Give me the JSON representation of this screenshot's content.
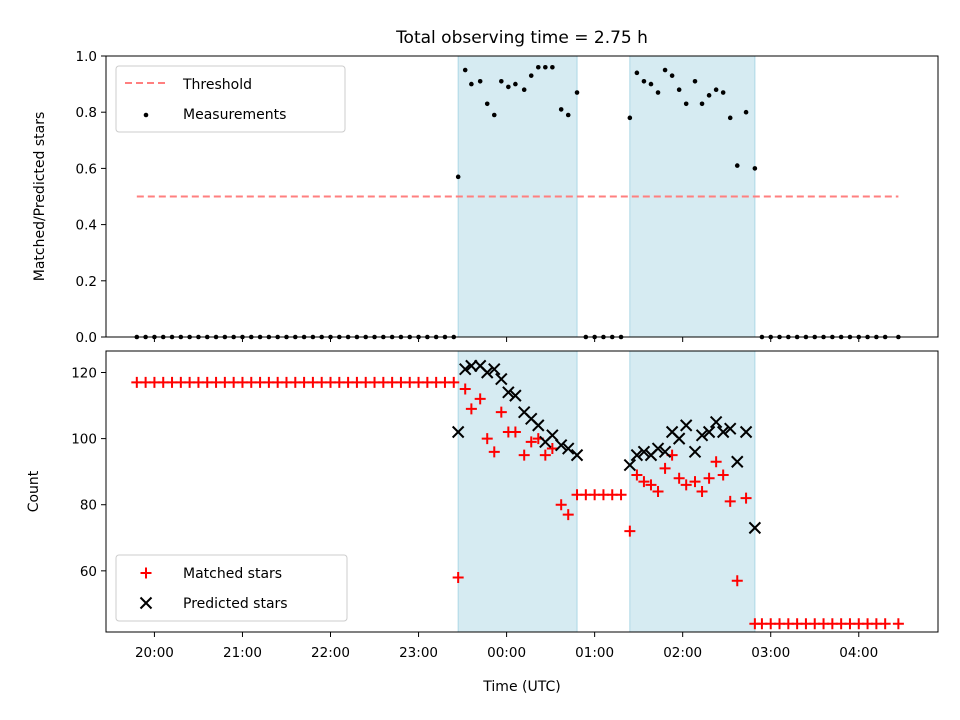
{
  "title": "Total observing time = 2.75 h",
  "colors": {
    "threshold": "#ff7f7f",
    "measurement": "#000000",
    "matched": "#ff0000",
    "predicted": "#000000",
    "shade": "#add8e6"
  },
  "chart_data": [
    {
      "type": "scatter",
      "panel": "top",
      "ylabel": "Matched/Predicted stars",
      "xlim": [
        -4.55,
        4.9
      ],
      "ylim": [
        0,
        1.0
      ],
      "yticks": [
        0.0,
        0.2,
        0.4,
        0.6,
        0.8,
        1.0
      ],
      "ytick_labels": [
        "0.0",
        "0.2",
        "0.4",
        "0.6",
        "0.8",
        "1.0"
      ],
      "legend": {
        "location": "upper-left",
        "entries": [
          "Threshold",
          "Measurements"
        ]
      },
      "threshold": {
        "name": "Threshold",
        "y": 0.5,
        "x_range": [
          -4.2,
          4.45
        ]
      },
      "shaded_intervals": [
        [
          -0.55,
          0.8
        ],
        [
          1.4,
          2.82
        ]
      ],
      "series": [
        {
          "name": "Measurements",
          "x": [
            -4.2,
            -4.1,
            -4.0,
            -3.9,
            -3.8,
            -3.7,
            -3.6,
            -3.5,
            -3.4,
            -3.3,
            -3.2,
            -3.1,
            -3.0,
            -2.9,
            -2.8,
            -2.7,
            -2.6,
            -2.5,
            -2.4,
            -2.3,
            -2.2,
            -2.1,
            -2.0,
            -1.9,
            -1.8,
            -1.7,
            -1.6,
            -1.5,
            -1.4,
            -1.3,
            -1.2,
            -1.1,
            -1.0,
            -0.9,
            -0.8,
            -0.7,
            -0.6,
            -0.55,
            -0.47,
            -0.4,
            -0.3,
            -0.22,
            -0.14,
            -0.06,
            0.02,
            0.1,
            0.2,
            0.28,
            0.36,
            0.44,
            0.52,
            0.62,
            0.7,
            0.8,
            0.9,
            1.0,
            1.1,
            1.2,
            1.3,
            1.4,
            1.48,
            1.56,
            1.64,
            1.72,
            1.8,
            1.88,
            1.96,
            2.04,
            2.14,
            2.22,
            2.3,
            2.38,
            2.46,
            2.54,
            2.62,
            2.72,
            2.82,
            2.9,
            3.0,
            3.1,
            3.2,
            3.3,
            3.4,
            3.5,
            3.6,
            3.7,
            3.8,
            3.9,
            4.0,
            4.1,
            4.2,
            4.3,
            4.45
          ],
          "y": [
            0,
            0,
            0,
            0,
            0,
            0,
            0,
            0,
            0,
            0,
            0,
            0,
            0,
            0,
            0,
            0,
            0,
            0,
            0,
            0,
            0,
            0,
            0,
            0,
            0,
            0,
            0,
            0,
            0,
            0,
            0,
            0,
            0,
            0,
            0,
            0,
            0,
            0.57,
            0.95,
            0.9,
            0.91,
            0.83,
            0.79,
            0.91,
            0.89,
            0.9,
            0.88,
            0.93,
            0.96,
            0.96,
            0.96,
            0.81,
            0.79,
            0.87,
            0,
            0,
            0,
            0,
            0,
            0.78,
            0.94,
            0.91,
            0.9,
            0.87,
            0.95,
            0.93,
            0.88,
            0.83,
            0.91,
            0.83,
            0.86,
            0.88,
            0.87,
            0.78,
            0.61,
            0.8,
            0.6,
            0,
            0,
            0,
            0,
            0,
            0,
            0,
            0,
            0,
            0,
            0,
            0,
            0,
            0,
            0,
            0
          ]
        }
      ]
    },
    {
      "type": "scatter",
      "panel": "bottom",
      "xlabel": "Time (UTC)",
      "ylabel": "Count",
      "xlim": [
        -4.55,
        4.9
      ],
      "ylim": [
        41.5,
        126.5
      ],
      "xticks": [
        -4,
        -3,
        -2,
        -1,
        0,
        1,
        2,
        3,
        4
      ],
      "xtick_labels": [
        "20:00",
        "21:00",
        "22:00",
        "23:00",
        "00:00",
        "01:00",
        "02:00",
        "03:00",
        "04:00"
      ],
      "yticks": [
        60,
        80,
        100,
        120
      ],
      "ytick_labels": [
        "60",
        "80",
        "100",
        "120"
      ],
      "legend": {
        "location": "lower-left",
        "entries": [
          "Matched stars",
          "Predicted stars"
        ]
      },
      "shaded_intervals": [
        [
          -0.55,
          0.8
        ],
        [
          1.4,
          2.82
        ]
      ],
      "series": [
        {
          "name": "Matched stars",
          "marker": "plus",
          "x": [
            -4.2,
            -4.1,
            -4.0,
            -3.9,
            -3.8,
            -3.7,
            -3.6,
            -3.5,
            -3.4,
            -3.3,
            -3.2,
            -3.1,
            -3.0,
            -2.9,
            -2.8,
            -2.7,
            -2.6,
            -2.5,
            -2.4,
            -2.3,
            -2.2,
            -2.1,
            -2.0,
            -1.9,
            -1.8,
            -1.7,
            -1.6,
            -1.5,
            -1.4,
            -1.3,
            -1.2,
            -1.1,
            -1.0,
            -0.9,
            -0.8,
            -0.7,
            -0.6,
            -0.55,
            -0.47,
            -0.4,
            -0.3,
            -0.22,
            -0.14,
            -0.06,
            0.02,
            0.1,
            0.2,
            0.28,
            0.36,
            0.44,
            0.52,
            0.62,
            0.7,
            0.8,
            0.9,
            1.0,
            1.1,
            1.2,
            1.3,
            1.4,
            1.48,
            1.56,
            1.64,
            1.72,
            1.8,
            1.88,
            1.96,
            2.04,
            2.14,
            2.22,
            2.3,
            2.38,
            2.46,
            2.54,
            2.62,
            2.72,
            2.82,
            2.9,
            3.0,
            3.1,
            3.2,
            3.3,
            3.4,
            3.5,
            3.6,
            3.7,
            3.8,
            3.9,
            4.0,
            4.1,
            4.2,
            4.3,
            4.45
          ],
          "y": [
            117,
            117,
            117,
            117,
            117,
            117,
            117,
            117,
            117,
            117,
            117,
            117,
            117,
            117,
            117,
            117,
            117,
            117,
            117,
            117,
            117,
            117,
            117,
            117,
            117,
            117,
            117,
            117,
            117,
            117,
            117,
            117,
            117,
            117,
            117,
            117,
            117,
            58,
            115,
            109,
            112,
            100,
            96,
            108,
            102,
            102,
            95,
            99,
            100,
            95,
            97,
            80,
            77,
            83,
            83,
            83,
            83,
            83,
            83,
            72,
            89,
            87,
            86,
            84,
            91,
            95,
            88,
            86,
            87,
            84,
            88,
            93,
            89,
            81,
            57,
            82,
            44,
            44,
            44,
            44,
            44,
            44,
            44,
            44,
            44,
            44,
            44,
            44,
            44,
            44,
            44,
            44,
            44
          ]
        },
        {
          "name": "Predicted stars",
          "marker": "x",
          "x": [
            -0.55,
            -0.47,
            -0.4,
            -0.3,
            -0.22,
            -0.14,
            -0.06,
            0.02,
            0.1,
            0.2,
            0.28,
            0.36,
            0.44,
            0.52,
            0.62,
            0.7,
            0.8,
            1.4,
            1.48,
            1.56,
            1.64,
            1.72,
            1.8,
            1.88,
            1.96,
            2.04,
            2.14,
            2.22,
            2.3,
            2.38,
            2.46,
            2.54,
            2.62,
            2.72,
            2.82
          ],
          "y": [
            102,
            121,
            122,
            122,
            120,
            121,
            118,
            114,
            113,
            108,
            106,
            104,
            99,
            101,
            98,
            97,
            95,
            92,
            95,
            96,
            95,
            97,
            96,
            102,
            100,
            104,
            96,
            101,
            102,
            105,
            102,
            103,
            93,
            102,
            73
          ]
        }
      ]
    }
  ]
}
